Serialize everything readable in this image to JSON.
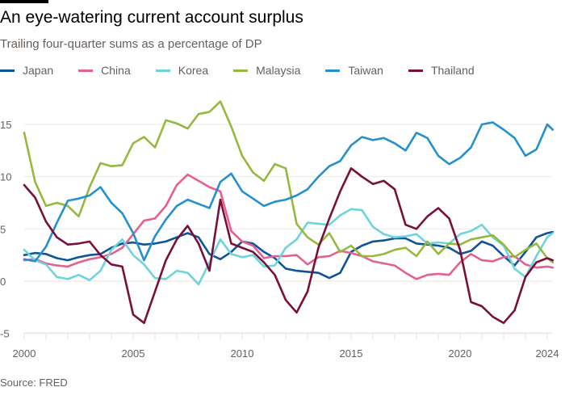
{
  "header": {
    "title": "An eye-watering current account surplus",
    "subtitle": "Trailing four-quarter sums as a percentage of DP"
  },
  "footer": {
    "source": "Source: FRED"
  },
  "chart_data": {
    "type": "line",
    "title": "An eye-watering current account surplus",
    "subtitle": "Trailing four-quarter sums as a percentage of DP",
    "xlabel": "",
    "ylabel": "",
    "xlim": [
      2000,
      2024.25
    ],
    "ylim": [
      -5,
      17.5
    ],
    "yticks": [
      15,
      10,
      5,
      0,
      -5
    ],
    "xticks": [
      2000,
      2005,
      2010,
      2015,
      2020,
      2024
    ],
    "grid": true,
    "legend_position": "top-left",
    "series": [
      {
        "name": "Japan",
        "color": "#0f5499",
        "x": [
          2000,
          2000.5,
          2001,
          2001.5,
          2002,
          2002.5,
          2003,
          2003.5,
          2004,
          2004.5,
          2005,
          2005.5,
          2006,
          2006.5,
          2007,
          2007.5,
          2008,
          2008.5,
          2009,
          2009.5,
          2010,
          2010.5,
          2011,
          2011.5,
          2012,
          2012.5,
          2013,
          2013.5,
          2014,
          2014.5,
          2015,
          2015.5,
          2016,
          2016.5,
          2017,
          2017.5,
          2018,
          2018.5,
          2019,
          2019.5,
          2020,
          2020.5,
          2021,
          2021.5,
          2022,
          2022.5,
          2023,
          2023.5,
          2024,
          2024.25
        ],
        "y": [
          2.5,
          2.7,
          2.6,
          2.2,
          2.0,
          2.3,
          2.5,
          2.6,
          3.2,
          3.6,
          3.7,
          3.5,
          3.6,
          3.8,
          4.2,
          4.6,
          4.2,
          2.6,
          2.1,
          2.8,
          3.8,
          3.6,
          2.8,
          2.2,
          1.2,
          1.0,
          0.9,
          0.8,
          0.3,
          0.8,
          2.8,
          3.4,
          3.8,
          3.9,
          4.1,
          4.1,
          3.6,
          3.5,
          3.4,
          3.2,
          2.6,
          2.9,
          3.8,
          3.4,
          2.4,
          1.5,
          2.8,
          4.2,
          4.6,
          4.7
        ]
      },
      {
        "name": "China",
        "color": "#e5608f",
        "x": [
          2000,
          2000.5,
          2001,
          2001.5,
          2002,
          2002.5,
          2003,
          2003.5,
          2004,
          2004.5,
          2005,
          2005.5,
          2006,
          2006.5,
          2007,
          2007.5,
          2008,
          2008.5,
          2009,
          2009.5,
          2010,
          2010.5,
          2011,
          2011.5,
          2012,
          2012.5,
          2013,
          2013.5,
          2014,
          2014.5,
          2015,
          2015.5,
          2016,
          2016.5,
          2017,
          2017.5,
          2018,
          2018.5,
          2019,
          2019.5,
          2020,
          2020.5,
          2021,
          2021.5,
          2022,
          2022.5,
          2023,
          2023.5,
          2024,
          2024.25
        ],
        "y": [
          2.0,
          2.1,
          1.7,
          1.5,
          1.4,
          1.8,
          2.1,
          2.3,
          2.6,
          3.2,
          4.5,
          5.8,
          6.0,
          7.2,
          9.2,
          10.2,
          9.6,
          9.0,
          8.6,
          4.8,
          3.8,
          3.4,
          2.2,
          2.4,
          2.4,
          2.5,
          1.6,
          2.3,
          2.4,
          2.9,
          2.7,
          2.4,
          1.9,
          1.7,
          1.5,
          0.8,
          0.2,
          0.6,
          0.7,
          0.6,
          1.8,
          2.6,
          2.0,
          1.9,
          2.3,
          2.4,
          1.6,
          1.3,
          1.4,
          1.3
        ]
      },
      {
        "name": "Korea",
        "color": "#6ed4db",
        "x": [
          2000,
          2000.5,
          2001,
          2001.5,
          2002,
          2002.5,
          2003,
          2003.5,
          2004,
          2004.5,
          2005,
          2005.5,
          2006,
          2006.5,
          2007,
          2007.5,
          2008,
          2008.5,
          2009,
          2009.5,
          2010,
          2010.5,
          2011,
          2011.5,
          2012,
          2012.5,
          2013,
          2013.5,
          2014,
          2014.5,
          2015,
          2015.5,
          2016,
          2016.5,
          2017,
          2017.5,
          2018,
          2018.5,
          2019,
          2019.5,
          2020,
          2020.5,
          2021,
          2021.5,
          2022,
          2022.5,
          2023,
          2023.5,
          2024,
          2024.25
        ],
        "y": [
          3.0,
          2.0,
          1.6,
          0.4,
          0.2,
          0.6,
          0.1,
          1.0,
          3.0,
          4.0,
          2.5,
          1.6,
          0.3,
          0.2,
          1.0,
          0.8,
          -0.3,
          1.8,
          4.0,
          2.6,
          2.3,
          2.5,
          1.4,
          1.5,
          3.2,
          4.0,
          5.6,
          5.5,
          5.4,
          6.3,
          6.9,
          6.8,
          5.2,
          4.5,
          4.2,
          4.3,
          4.5,
          3.6,
          3.7,
          3.6,
          4.5,
          4.8,
          5.4,
          4.2,
          3.4,
          1.2,
          0.4,
          2.4,
          4.2,
          4.6
        ]
      },
      {
        "name": "Malaysia",
        "color": "#96b83f",
        "x": [
          2000,
          2000.5,
          2001,
          2001.5,
          2002,
          2002.5,
          2003,
          2003.5,
          2004,
          2004.5,
          2005,
          2005.5,
          2006,
          2006.5,
          2007,
          2007.5,
          2008,
          2008.5,
          2009,
          2009.5,
          2010,
          2010.5,
          2011,
          2011.5,
          2012,
          2012.5,
          2013,
          2013.5,
          2014,
          2014.5,
          2015,
          2015.5,
          2016,
          2016.5,
          2017,
          2017.5,
          2018,
          2018.5,
          2019,
          2019.5,
          2020,
          2020.5,
          2021,
          2021.5,
          2022,
          2022.5,
          2023,
          2023.5,
          2024,
          2024.25
        ],
        "y": [
          14.2,
          9.5,
          7.2,
          7.5,
          7.2,
          6.2,
          9.0,
          11.3,
          11.0,
          11.1,
          13.2,
          13.8,
          12.8,
          15.4,
          15.1,
          14.6,
          16.0,
          16.2,
          17.2,
          14.8,
          12.0,
          10.4,
          9.6,
          11.2,
          10.8,
          5.5,
          4.2,
          3.5,
          4.6,
          2.8,
          3.4,
          2.4,
          2.4,
          2.6,
          3.0,
          3.2,
          2.4,
          3.8,
          2.6,
          3.6,
          3.5,
          4.0,
          4.2,
          4.4,
          3.5,
          2.3,
          3.0,
          3.6,
          2.2,
          1.8
        ]
      },
      {
        "name": "Taiwan",
        "color": "#2490cc",
        "x": [
          2000,
          2000.5,
          2001,
          2001.5,
          2002,
          2002.5,
          2003,
          2003.5,
          2004,
          2004.5,
          2005,
          2005.5,
          2006,
          2006.5,
          2007,
          2007.5,
          2008,
          2008.5,
          2009,
          2009.5,
          2010,
          2010.5,
          2011,
          2011.5,
          2012,
          2012.5,
          2013,
          2013.5,
          2014,
          2014.5,
          2015,
          2015.5,
          2016,
          2016.5,
          2017,
          2017.5,
          2018,
          2018.5,
          2019,
          2019.5,
          2020,
          2020.5,
          2021,
          2021.5,
          2022,
          2022.5,
          2023,
          2023.5,
          2024,
          2024.25
        ],
        "y": [
          2.1,
          1.9,
          3.3,
          5.6,
          7.7,
          7.9,
          8.2,
          9.0,
          7.5,
          6.5,
          4.6,
          2.0,
          4.3,
          5.9,
          7.2,
          7.8,
          7.4,
          7.0,
          9.5,
          10.3,
          8.6,
          7.9,
          7.2,
          7.6,
          7.8,
          8.2,
          8.8,
          10.0,
          11.0,
          11.5,
          13.0,
          13.8,
          13.5,
          13.7,
          13.2,
          12.5,
          14.2,
          13.7,
          12.0,
          11.2,
          11.8,
          12.8,
          15.0,
          15.2,
          14.5,
          13.7,
          12.0,
          12.6,
          15.0,
          14.5
        ]
      },
      {
        "name": "Thailand",
        "color": "#790f3b",
        "x": [
          2000,
          2000.5,
          2001,
          2001.5,
          2002,
          2002.5,
          2003,
          2003.5,
          2004,
          2004.5,
          2005,
          2005.5,
          2006,
          2006.5,
          2007,
          2007.5,
          2008,
          2008.5,
          2009,
          2009.5,
          2010,
          2010.5,
          2011,
          2011.5,
          2012,
          2012.5,
          2013,
          2013.5,
          2014,
          2014.5,
          2015,
          2015.5,
          2016,
          2016.5,
          2017,
          2017.5,
          2018,
          2018.5,
          2019,
          2019.5,
          2020,
          2020.5,
          2021,
          2021.5,
          2022,
          2022.5,
          2023,
          2023.5,
          2024,
          2024.25
        ],
        "y": [
          9.2,
          8.0,
          5.7,
          4.2,
          3.5,
          3.6,
          3.8,
          2.5,
          1.6,
          1.4,
          -3.2,
          -4.0,
          -1.0,
          2.0,
          4.0,
          5.3,
          3.6,
          1.0,
          7.8,
          3.6,
          3.2,
          2.8,
          1.8,
          0.6,
          -1.8,
          -3.0,
          -1.0,
          3.2,
          6.0,
          8.6,
          10.8,
          10.0,
          9.3,
          9.6,
          8.8,
          5.4,
          5.0,
          6.2,
          7.0,
          6.0,
          3.0,
          -2.0,
          -2.4,
          -3.4,
          -4.0,
          -2.8,
          0.4,
          1.8,
          2.2,
          2.0
        ]
      }
    ]
  }
}
